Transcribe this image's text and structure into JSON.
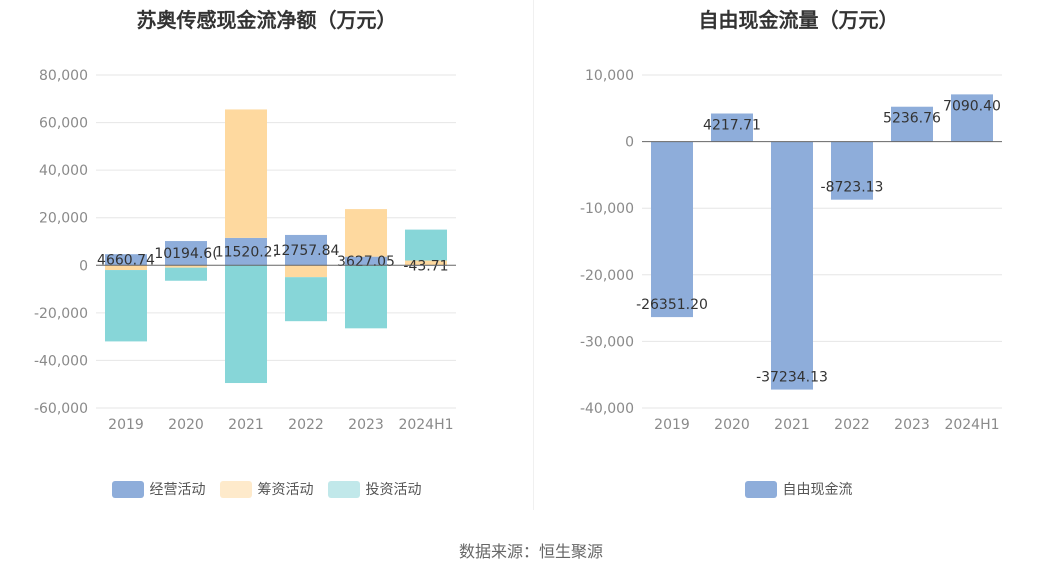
{
  "colors": {
    "operating": "#8eadda",
    "financing": "#fed99f",
    "investing": "#87d6d8",
    "legend_investing": "#c1e8ea",
    "legend_financing": "#feeacb",
    "fcf": "#8eadda",
    "axis": "#666666",
    "grid": "#e6e6e6"
  },
  "left": {
    "title": "苏奥传感现金流净额（万元）",
    "legend": [
      "经营活动",
      "筹资活动",
      "投资活动"
    ]
  },
  "right": {
    "title": "自由现金流量（万元）",
    "legend": [
      "自由现金流"
    ]
  },
  "source": "数据来源：恒生聚源",
  "chart_data": [
    {
      "type": "bar",
      "stacked": true,
      "title": "苏奥传感现金流净额（万元）",
      "categories": [
        "2019",
        "2020",
        "2021",
        "2022",
        "2023",
        "2024H1"
      ],
      "ylim": [
        -60000,
        80000
      ],
      "yticks": [
        -60000,
        -40000,
        -20000,
        0,
        20000,
        40000,
        60000,
        80000
      ],
      "ytick_labels": [
        "-60,000",
        "-40,000",
        "-20,000",
        "0",
        "20,000",
        "40,000",
        "60,000",
        "80,000"
      ],
      "grid": true,
      "legend_position": "bottom",
      "series": [
        {
          "name": "经营活动",
          "values": [
            4660.74,
            10194.6,
            11520.2,
            12757.84,
            3627.05,
            -43.71
          ]
        },
        {
          "name": "筹资活动",
          "values": [
            -2000,
            -1000,
            54000,
            -5000,
            20000,
            2000
          ]
        },
        {
          "name": "投资活动",
          "values": [
            -30000,
            -5500,
            -49500,
            -18500,
            -26500,
            13000
          ]
        }
      ],
      "data_labels": [
        "4660.74",
        "10194.6(",
        "11520.2:",
        "12757.84",
        "3627.05",
        "-43.71"
      ]
    },
    {
      "type": "bar",
      "title": "自由现金流量（万元）",
      "categories": [
        "2019",
        "2020",
        "2021",
        "2022",
        "2023",
        "2024H1"
      ],
      "ylim": [
        -40000,
        10000
      ],
      "yticks": [
        -40000,
        -30000,
        -20000,
        -10000,
        0,
        10000
      ],
      "ytick_labels": [
        "-40,000",
        "-30,000",
        "-20,000",
        "-10,000",
        "0",
        "10,000"
      ],
      "grid": true,
      "legend_position": "bottom",
      "series": [
        {
          "name": "自由现金流",
          "values": [
            -26351.2,
            4217.71,
            -37234.13,
            -8723.13,
            5236.76,
            7090.4
          ]
        }
      ],
      "data_labels": [
        "-26351.20",
        "4217.71",
        "-37234.13",
        "-8723.13",
        "5236.76",
        "7090.40"
      ]
    }
  ]
}
